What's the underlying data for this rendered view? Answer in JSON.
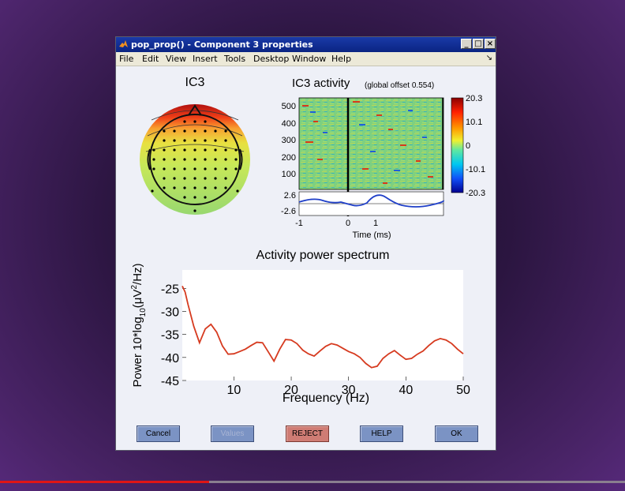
{
  "window": {
    "title": "pop_prop() - Component 3 properties",
    "controls": [
      "_",
      "□",
      "×"
    ]
  },
  "menu": [
    "File",
    "Edit",
    "View",
    "Insert",
    "Tools",
    "Desktop",
    "Window",
    "Help"
  ],
  "menu_dock_glyph": "↘",
  "topo": {
    "title": "IC3"
  },
  "erp_image": {
    "title": "IC3 activity",
    "subtitle": "(global offset 0.554)",
    "trial_ticks": [
      "500",
      "400",
      "300",
      "200",
      "100"
    ],
    "colorbar_ticks": [
      "20.3",
      "10.1",
      "0",
      "-10.1",
      "-20.3"
    ],
    "erp_yticks": [
      "2.6",
      "-2.6"
    ],
    "xticks": [
      "-1",
      "0",
      "1"
    ],
    "xlabel": "Time (ms)"
  },
  "chart_data": {
    "type": "line",
    "title": "Activity power spectrum",
    "xlabel": "Frequency (Hz)",
    "ylabel_parts": [
      "Power 10*log",
      "10",
      "(μV",
      "2",
      "/Hz)"
    ],
    "xlim": [
      1,
      50
    ],
    "ylim": [
      -45,
      -21
    ],
    "xticks": [
      "10",
      "20",
      "30",
      "40",
      "50"
    ],
    "yticks": [
      "-25",
      "-30",
      "-35",
      "-40",
      "-45"
    ],
    "series_color": "#d63a1f",
    "x": [
      1,
      1.5,
      2,
      3,
      4,
      5,
      6,
      7,
      8,
      9,
      10,
      11,
      12,
      13,
      14,
      15,
      16,
      17,
      18,
      19,
      20,
      21,
      22,
      23,
      24,
      25,
      26,
      27,
      28,
      29,
      30,
      31,
      32,
      33,
      34,
      35,
      36,
      37,
      38,
      39,
      40,
      41,
      42,
      43,
      44,
      45,
      46,
      47,
      48,
      49,
      50
    ],
    "y": [
      -24.5,
      -25.8,
      -28.5,
      -33.2,
      -36.8,
      -33.8,
      -32.8,
      -34.5,
      -37.5,
      -39.3,
      -39.2,
      -38.7,
      -38.2,
      -37.4,
      -36.7,
      -36.8,
      -38.8,
      -40.8,
      -38.2,
      -36.1,
      -36.2,
      -37.0,
      -38.4,
      -39.2,
      -39.7,
      -38.6,
      -37.6,
      -37.0,
      -37.3,
      -38.0,
      -38.7,
      -39.2,
      -40.0,
      -41.3,
      -42.2,
      -41.9,
      -40.2,
      -39.2,
      -38.5,
      -39.5,
      -40.4,
      -40.2,
      -39.3,
      -38.6,
      -37.4,
      -36.4,
      -35.9,
      -36.2,
      -37.0,
      -38.2,
      -39.2
    ]
  },
  "buttons": {
    "cancel": "Cancel",
    "values": "Values",
    "reject": "REJECT",
    "help": "HELP",
    "ok": "OK"
  },
  "video_progress": 0.335
}
